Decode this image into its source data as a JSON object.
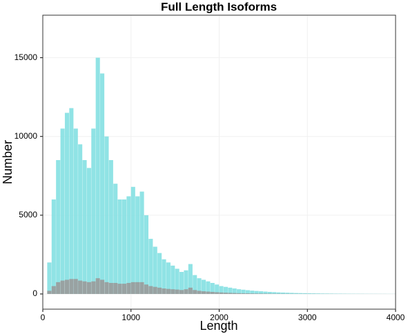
{
  "chart_data": {
    "type": "histogram",
    "title": "Full Length Isoforms",
    "x_label": "Length",
    "y_label": "Number",
    "bins": [
      0,
      50,
      100,
      150,
      200,
      250,
      300,
      350,
      400,
      450,
      500,
      550,
      600,
      650,
      700,
      750,
      800,
      850,
      900,
      950,
      1000,
      1050,
      1100,
      1150,
      1200,
      1250,
      1300,
      1350,
      1400,
      1450,
      1500,
      1550,
      1600,
      1650,
      1700,
      1750,
      1800,
      1850,
      1900,
      1950,
      2000,
      2050,
      2100,
      2150,
      2200,
      2250,
      2300,
      2350,
      2400,
      2450,
      2500,
      2550,
      2600,
      2650,
      2700,
      2750,
      2800,
      2850,
      2900,
      2950,
      3000,
      3050,
      3100,
      3150,
      3200,
      3250,
      3300,
      3350,
      3400,
      3450,
      3500,
      3550,
      3600,
      3650,
      3700,
      3750,
      3800,
      3850,
      3900,
      3950,
      4000
    ],
    "series": [
      {
        "color": "#84e0e2",
        "values": [
          0,
          2000,
          6000,
          8500,
          10500,
          11500,
          11800,
          10500,
          9500,
          8500,
          8000,
          10500,
          15000,
          14000,
          10000,
          8500,
          7000,
          6000,
          6000,
          6200,
          6800,
          6200,
          6500,
          5000,
          3500,
          3000,
          2600,
          2200,
          2000,
          1800,
          1600,
          1400,
          1500,
          1900,
          1200,
          1000,
          900,
          800,
          700,
          600,
          500,
          450,
          400,
          350,
          300,
          270,
          240,
          210,
          190,
          170,
          150,
          130,
          115,
          100,
          90,
          80,
          70,
          60,
          55,
          50,
          45,
          40,
          36,
          32,
          29,
          26,
          23,
          21,
          19,
          17,
          15,
          14,
          12,
          11,
          10,
          9,
          8,
          7,
          6,
          5
        ]
      },
      {
        "color": "#9a9a9a",
        "values": [
          0,
          200,
          500,
          750,
          850,
          900,
          950,
          950,
          850,
          800,
          750,
          800,
          1000,
          900,
          750,
          700,
          700,
          650,
          650,
          700,
          750,
          750,
          750,
          600,
          500,
          450,
          400,
          350,
          320,
          300,
          280,
          250,
          300,
          400,
          250,
          200,
          170,
          150,
          130,
          110,
          95,
          80,
          70,
          60,
          50,
          45,
          40,
          35,
          30,
          27,
          24,
          21,
          18,
          16,
          14,
          12,
          11,
          10,
          9,
          8,
          7,
          7,
          6,
          6,
          5,
          5,
          4,
          4,
          4,
          3,
          3,
          3,
          3,
          2,
          2,
          2,
          2,
          2,
          1,
          1
        ]
      }
    ],
    "xlim": [
      0,
      4000
    ],
    "ylim": [
      -965,
      17700
    ],
    "xticks": [
      0,
      1000,
      2000,
      3000,
      4000
    ],
    "yticks": [
      0,
      5000,
      10000,
      15000
    ],
    "grid": true
  }
}
